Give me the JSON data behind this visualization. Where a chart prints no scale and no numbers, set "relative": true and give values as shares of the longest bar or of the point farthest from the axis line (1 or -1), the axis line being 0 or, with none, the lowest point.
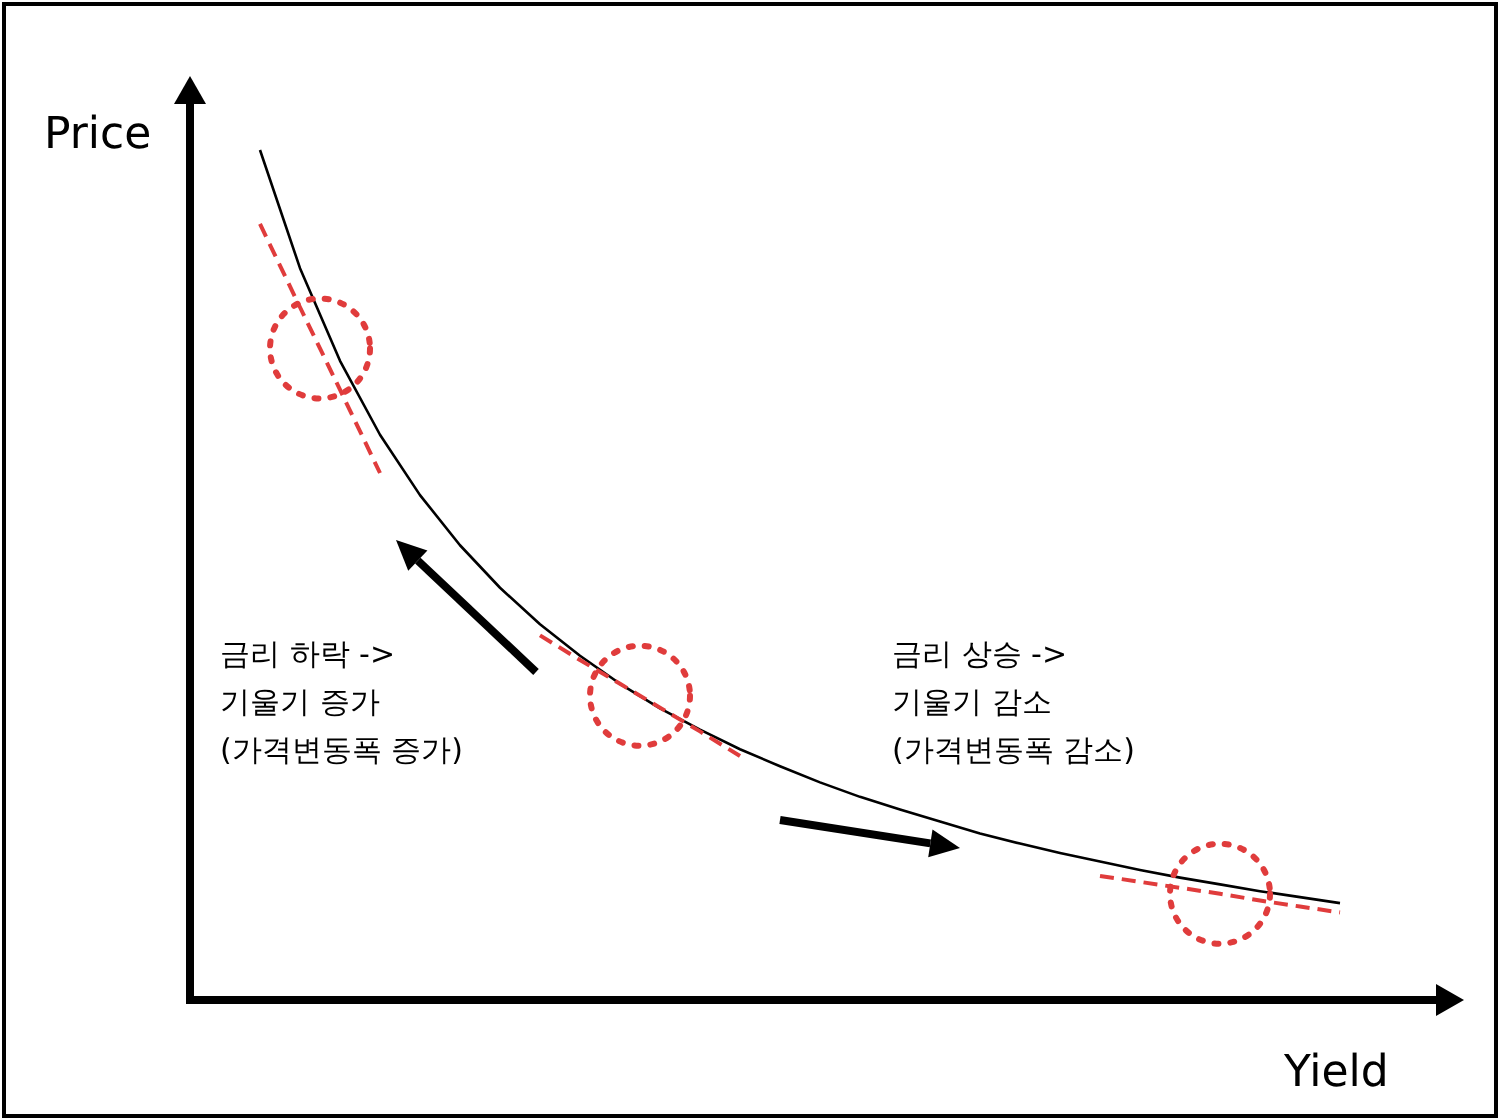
{
  "chart_data": {
    "type": "line",
    "relative": true,
    "xlabel": "Yield",
    "ylabel": "Price",
    "categories": [
      null,
      null,
      null,
      null,
      null,
      null,
      null,
      null,
      null,
      null,
      null,
      null,
      null,
      null,
      null,
      null,
      null,
      null,
      null,
      null,
      null,
      null,
      null,
      null,
      null,
      null,
      null,
      null
    ],
    "series": [
      {
        "color": "#000000",
        "line_style": "solid",
        "values": [
          1.0,
          0.861,
          0.752,
          0.665,
          0.594,
          0.535,
          0.485,
          0.442,
          0.405,
          0.372,
          0.343,
          0.318,
          0.295,
          0.275,
          0.256,
          0.239,
          0.224,
          0.21,
          0.196,
          0.184,
          0.173,
          0.163,
          0.153,
          0.144,
          0.136,
          0.128,
          0.121,
          0.114
        ]
      },
      {
        "color": "#e03c3c",
        "line_style": "dashed",
        "values": [
          0.913,
          0.815,
          0.718,
          0.62,
          null,
          null,
          null,
          null,
          null,
          null,
          null,
          null,
          null,
          null,
          null,
          null,
          null,
          null,
          null,
          null,
          null,
          null,
          null,
          null,
          null,
          null,
          null,
          null
        ]
      },
      {
        "color": "#e03c3c",
        "line_style": "dashed",
        "values": [
          null,
          null,
          null,
          null,
          null,
          null,
          null,
          0.429,
          0.4,
          0.372,
          0.344,
          0.316,
          0.287,
          null,
          null,
          null,
          null,
          null,
          null,
          null,
          null,
          null,
          null,
          null,
          null,
          null,
          null,
          null
        ]
      },
      {
        "color": "#e03c3c",
        "line_style": "dashed",
        "values": [
          null,
          null,
          null,
          null,
          null,
          null,
          null,
          null,
          null,
          null,
          null,
          null,
          null,
          null,
          null,
          null,
          null,
          null,
          null,
          null,
          null,
          0.146,
          0.139,
          0.132,
          0.125,
          0.117,
          0.11,
          0.103
        ]
      }
    ],
    "annotations": [
      "금리 하락 ->\n기울기 증가\n(가격변동폭 증가)",
      "금리 상승 ->\n기울기 감소\n(가격변동폭 감소)"
    ]
  }
}
